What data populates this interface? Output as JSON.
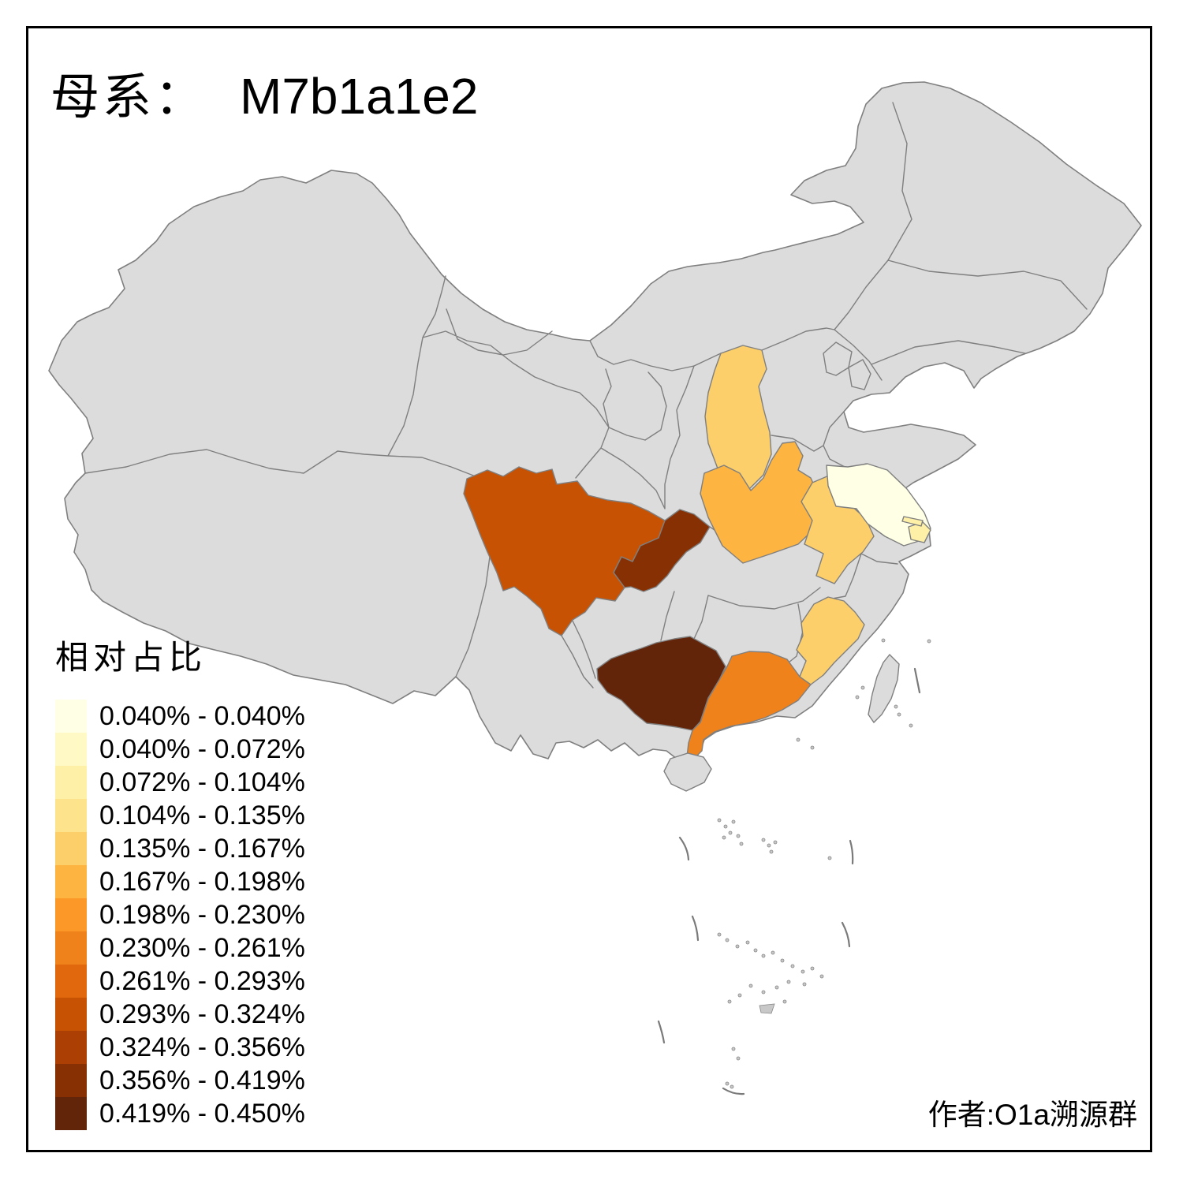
{
  "title": {
    "prefix": "母系：",
    "haplogroup": "M7b1a1e2"
  },
  "legend": {
    "title": "相对占比",
    "items": [
      {
        "label": "0.040% - 0.040%",
        "color": "#FFFFE5"
      },
      {
        "label": "0.040% - 0.072%",
        "color": "#FFF9C6"
      },
      {
        "label": "0.072% - 0.104%",
        "color": "#FEF0A6"
      },
      {
        "label": "0.104% - 0.135%",
        "color": "#FEE38D"
      },
      {
        "label": "0.135% - 0.167%",
        "color": "#FDCF6A"
      },
      {
        "label": "0.167% - 0.198%",
        "color": "#FDB441"
      },
      {
        "label": "0.198% - 0.230%",
        "color": "#FB9827"
      },
      {
        "label": "0.230% - 0.261%",
        "color": "#F0821C"
      },
      {
        "label": "0.261% - 0.293%",
        "color": "#E2680E"
      },
      {
        "label": "0.293% - 0.324%",
        "color": "#C85204"
      },
      {
        "label": "0.324% - 0.356%",
        "color": "#AC3F03"
      },
      {
        "label": "0.356% - 0.419%",
        "color": "#873004"
      },
      {
        "label": "0.419% - 0.450%",
        "color": "#63250A"
      }
    ]
  },
  "author": "作者:O1a溯源群",
  "chart_data": {
    "type": "choropleth-map",
    "title": "母系： M7b1a1e2",
    "legend_title": "相对占比",
    "bins": [
      "0.040% - 0.040%",
      "0.040% - 0.072%",
      "0.072% - 0.104%",
      "0.104% - 0.135%",
      "0.135% - 0.167%",
      "0.167% - 0.198%",
      "0.198% - 0.230%",
      "0.230% - 0.261%",
      "0.261% - 0.293%",
      "0.293% - 0.324%",
      "0.324% - 0.356%",
      "0.356% - 0.419%",
      "0.419% - 0.450%"
    ],
    "series": [
      {
        "region": "jiangsu",
        "bin": 1,
        "range": "0.040% - 0.040%"
      },
      {
        "region": "shanghai",
        "bin": 3,
        "range": "0.072% - 0.104%"
      },
      {
        "region": "shanxi",
        "bin": 5,
        "range": "0.135% - 0.167%"
      },
      {
        "region": "anhui",
        "bin": 5,
        "range": "0.135% - 0.167%"
      },
      {
        "region": "fujian",
        "bin": 5,
        "range": "0.135% - 0.167%"
      },
      {
        "region": "henan",
        "bin": 6,
        "range": "0.167% - 0.198%"
      },
      {
        "region": "guangdong",
        "bin": 8,
        "range": "0.230% - 0.261%"
      },
      {
        "region": "sichuan",
        "bin": 10,
        "range": "0.293% - 0.324%"
      },
      {
        "region": "chongqing",
        "bin": 12,
        "range": "0.356% - 0.419%"
      },
      {
        "region": "guangxi",
        "bin": 13,
        "range": "0.419% - 0.450%"
      }
    ],
    "no_data_color": "#DCDCDC",
    "boundary_color": "#7F7F7F",
    "sea_color": "#FFFFFF"
  },
  "map": {
    "no_data_color": "#DCDCDC",
    "border_color": "#7F7F7F",
    "provinces": [
      {
        "id": "shanxi",
        "bin": 5
      },
      {
        "id": "henan",
        "bin": 6
      },
      {
        "id": "anhui",
        "bin": 5
      },
      {
        "id": "jiangsu",
        "bin": 1
      },
      {
        "id": "shanghai",
        "bin": 3
      },
      {
        "id": "fujian",
        "bin": 5
      },
      {
        "id": "guangdong",
        "bin": 8
      },
      {
        "id": "sichuan",
        "bin": 10
      },
      {
        "id": "chongqing",
        "bin": 12
      },
      {
        "id": "guangxi",
        "bin": 13
      }
    ]
  }
}
